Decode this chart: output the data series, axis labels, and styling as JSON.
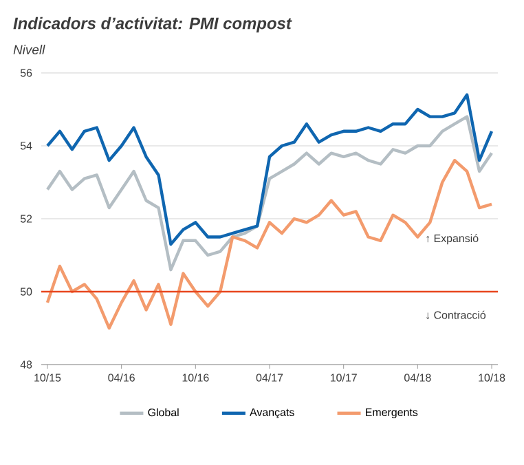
{
  "chart_data": {
    "type": "line",
    "title": "Indicadors d’activitat: PMI compost",
    "subtitle": "Nivell",
    "categories": [
      "10/15",
      null,
      null,
      null,
      null,
      null,
      "04/16",
      null,
      null,
      null,
      null,
      null,
      "10/16",
      null,
      null,
      null,
      null,
      null,
      "04/17",
      null,
      null,
      null,
      null,
      null,
      "10/17",
      null,
      null,
      null,
      null,
      null,
      "04/18",
      null,
      null,
      null,
      null,
      null,
      "10/18"
    ],
    "series": [
      {
        "name": "Global",
        "color": "#b4bec4",
        "values": [
          52.8,
          53.3,
          52.8,
          53.1,
          53.2,
          52.3,
          52.8,
          53.3,
          52.5,
          52.3,
          50.6,
          51.4,
          51.4,
          51.0,
          51.1,
          51.5,
          51.6,
          51.8,
          53.1,
          53.3,
          53.5,
          53.8,
          53.5,
          53.8,
          53.7,
          53.8,
          53.6,
          53.5,
          53.9,
          53.8,
          54.0,
          54.0,
          54.4,
          54.6,
          54.8,
          53.3,
          53.8
        ]
      },
      {
        "name": "Avançats",
        "color": "#0f66b0",
        "values": [
          54.0,
          54.4,
          53.9,
          54.4,
          54.5,
          53.6,
          54.0,
          54.5,
          53.7,
          53.2,
          51.3,
          51.7,
          51.9,
          51.5,
          51.5,
          51.6,
          51.7,
          51.8,
          53.7,
          54.0,
          54.1,
          54.6,
          54.1,
          54.3,
          54.4,
          54.4,
          54.5,
          54.4,
          54.6,
          54.6,
          55.0,
          54.8,
          54.8,
          54.9,
          55.4,
          53.6,
          54.4
        ]
      },
      {
        "name": "Emergents",
        "color": "#f39b6d",
        "values": [
          49.7,
          50.7,
          50.0,
          50.2,
          49.8,
          49.0,
          49.7,
          50.3,
          49.5,
          50.2,
          49.1,
          50.5,
          50.0,
          49.6,
          50.0,
          51.5,
          51.4,
          51.2,
          51.9,
          51.6,
          52.0,
          51.9,
          52.1,
          52.5,
          52.1,
          52.2,
          51.5,
          51.4,
          52.1,
          51.9,
          51.5,
          51.9,
          53.0,
          53.6,
          53.3,
          52.3,
          52.4
        ]
      }
    ],
    "ylim": [
      48,
      56
    ],
    "yticks": [
      48,
      50,
      52,
      54,
      56
    ],
    "grid": "y",
    "legend": "bottom",
    "ref_lines": [
      {
        "axis": "y",
        "value": 50,
        "color": "#e8461e"
      }
    ],
    "annotations": [
      "↑ Expansió",
      "↓ Contracció"
    ]
  }
}
